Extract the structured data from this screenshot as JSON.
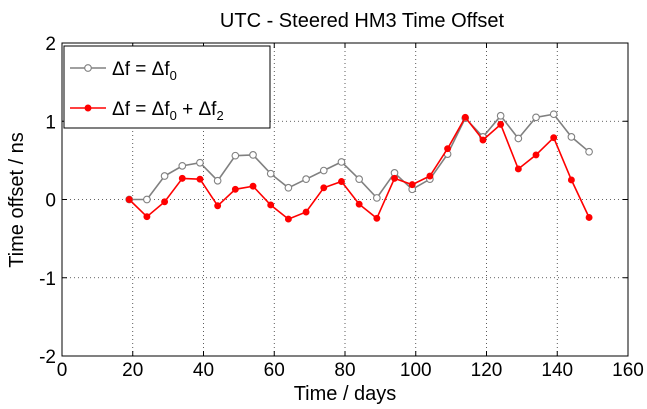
{
  "chart_data": {
    "type": "line",
    "title": "UTC - Steered HM3  Time Offset",
    "xlabel": "Time / days",
    "ylabel": "Time offset / ns",
    "xlim": [
      0,
      160
    ],
    "ylim": [
      -2,
      2
    ],
    "xticks": [
      0,
      20,
      40,
      60,
      80,
      100,
      120,
      140,
      160
    ],
    "yticks": [
      -2,
      -1,
      0,
      1,
      2
    ],
    "grid": true,
    "legend_position": "top-left",
    "series": [
      {
        "name": "Δf = Δf0",
        "legend": {
          "lhs": "Δf = Δf",
          "sub1": "0",
          "rest1": "",
          "sub2": "",
          "rest2": ""
        },
        "color": "#808080",
        "marker": "open-circle",
        "x": [
          19,
          24,
          29,
          34,
          39,
          44,
          49,
          54,
          59,
          64,
          69,
          74,
          79,
          84,
          89,
          94,
          99,
          104,
          109,
          114,
          119,
          124,
          129,
          134,
          139,
          144,
          149
        ],
        "y": [
          0.0,
          0.0,
          0.3,
          0.43,
          0.47,
          0.24,
          0.56,
          0.57,
          0.33,
          0.15,
          0.26,
          0.37,
          0.48,
          0.26,
          0.02,
          0.34,
          0.13,
          0.26,
          0.58,
          1.04,
          0.8,
          1.07,
          0.78,
          1.05,
          1.09,
          0.8,
          0.61
        ]
      },
      {
        "name": "Δf = Δf0 + Δf2",
        "legend": {
          "lhs": "Δf = Δf",
          "sub1": "0",
          "rest1": " + Δf",
          "sub2": "2",
          "rest2": ""
        },
        "color": "#ff0000",
        "marker": "filled-circle",
        "x": [
          19,
          24,
          29,
          34,
          39,
          44,
          49,
          54,
          59,
          64,
          69,
          74,
          79,
          84,
          89,
          94,
          99,
          104,
          109,
          114,
          119,
          124,
          129,
          134,
          139,
          144,
          149
        ],
        "y": [
          0.0,
          -0.22,
          -0.03,
          0.27,
          0.26,
          -0.08,
          0.13,
          0.17,
          -0.07,
          -0.25,
          -0.16,
          0.15,
          0.23,
          -0.06,
          -0.24,
          0.27,
          0.19,
          0.3,
          0.65,
          1.05,
          0.76,
          0.96,
          0.39,
          0.57,
          0.79,
          0.25,
          -0.23
        ]
      }
    ]
  }
}
